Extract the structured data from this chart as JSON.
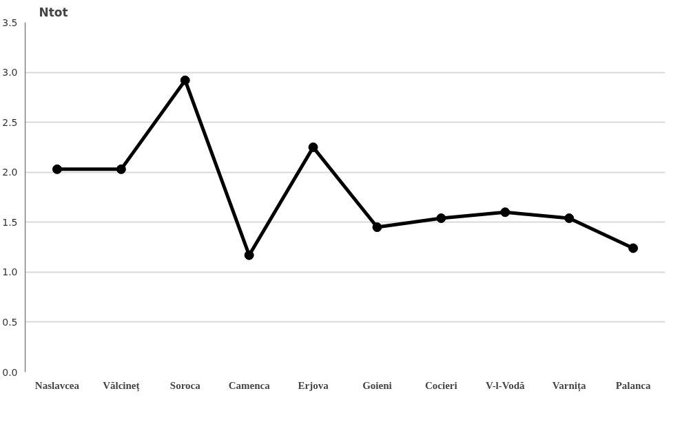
{
  "chart_data": {
    "type": "line",
    "title": "Ntot",
    "categories": [
      "Naslavcea",
      "Vălcineț",
      "Soroca",
      "Camenca",
      "Erjova",
      "Goieni",
      "Cocieri",
      "V-l-Vodă",
      "Varnița",
      "Palanca"
    ],
    "series": [
      {
        "color": "#000000",
        "values": [
          2.03,
          2.03,
          2.92,
          1.17,
          2.25,
          1.45,
          1.54,
          1.6,
          1.54,
          1.24
        ]
      }
    ],
    "ylim": [
      0,
      3.5
    ],
    "yticks": [
      {
        "value": 0,
        "label": "0.0"
      },
      0.5,
      {
        "value": 1,
        "label": "1.0"
      },
      1.5,
      {
        "value": 2,
        "label": "2.0"
      },
      2.5,
      {
        "value": 3,
        "label": "3.0"
      },
      3.5
    ],
    "grid": "y",
    "marker": "circle",
    "line_style": "solid"
  }
}
